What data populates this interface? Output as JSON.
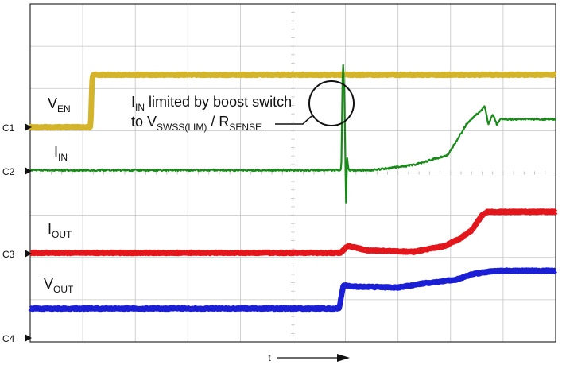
{
  "chart_data": {
    "type": "line",
    "title": "",
    "xlabel": "t",
    "ylabel": "",
    "grid": true,
    "grid_divisions": {
      "x": 10,
      "y": 8
    },
    "x_range": [
      0,
      10
    ],
    "channels": [
      {
        "name": "C1",
        "label_main": "V",
        "label_sub": "EN",
        "color": "#d4b42a",
        "points": [
          [
            0,
            0
          ],
          [
            1.15,
            0
          ],
          [
            1.18,
            0.95
          ],
          [
            1.2,
            1.0
          ],
          [
            10,
            1.0
          ]
        ]
      },
      {
        "name": "C2",
        "label_main": "I",
        "label_sub": "IN",
        "color": "#178a17",
        "points": [
          [
            0,
            0
          ],
          [
            5.92,
            0
          ],
          [
            5.95,
            2.2
          ],
          [
            5.98,
            1.5
          ],
          [
            6.01,
            -0.7
          ],
          [
            6.03,
            0.25
          ],
          [
            6.06,
            0
          ],
          [
            6.5,
            0
          ],
          [
            7.3,
            0.1
          ],
          [
            7.95,
            0.3
          ],
          [
            8.3,
            0.9
          ],
          [
            8.65,
            1.25
          ],
          [
            8.72,
            0.9
          ],
          [
            8.8,
            1.1
          ],
          [
            8.88,
            0.9
          ],
          [
            8.95,
            1.0
          ],
          [
            10,
            1.0
          ]
        ]
      },
      {
        "name": "C3",
        "label_main": "I",
        "label_sub": "OUT",
        "color": "#e3171b",
        "points": [
          [
            0,
            0
          ],
          [
            5.9,
            0
          ],
          [
            6.05,
            0.14
          ],
          [
            6.4,
            0.05
          ],
          [
            7.3,
            0.02
          ],
          [
            7.9,
            0.14
          ],
          [
            8.2,
            0.3
          ],
          [
            8.4,
            0.45
          ],
          [
            8.6,
            0.75
          ],
          [
            8.7,
            0.82
          ],
          [
            10,
            0.82
          ]
        ]
      },
      {
        "name": "C4",
        "label_main": "V",
        "label_sub": "OUT",
        "color": "#1a1fd6",
        "points": [
          [
            0,
            0
          ],
          [
            5.88,
            0
          ],
          [
            5.96,
            0.45
          ],
          [
            6.1,
            0.42
          ],
          [
            7.0,
            0.4
          ],
          [
            7.5,
            0.48
          ],
          [
            8.1,
            0.55
          ],
          [
            8.4,
            0.65
          ],
          [
            8.7,
            0.7
          ],
          [
            9.0,
            0.72
          ],
          [
            10,
            0.72
          ]
        ]
      }
    ],
    "annotation": {
      "line1_main": "I",
      "line1_sub": "IN",
      "line1_rest": " limited by boost switch",
      "line2_prefix": "to V",
      "line2_sub1": "SWSS(LIM)",
      "line2_mid": " / R",
      "line2_sub2": "SENSE"
    },
    "time_label": "t"
  }
}
